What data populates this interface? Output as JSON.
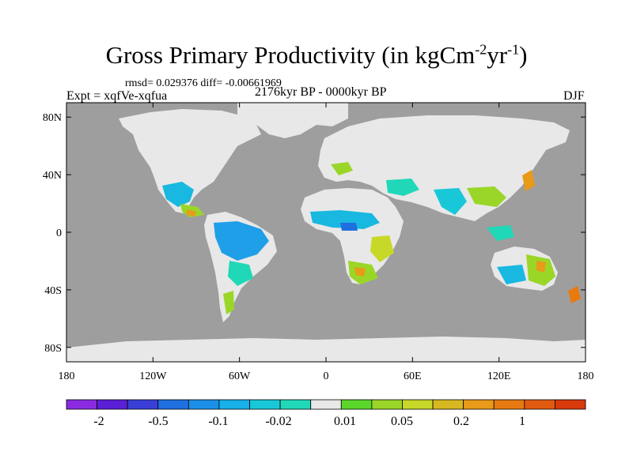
{
  "title": {
    "main": "Gross Primary Productivity (in kgCm",
    "exp1": "-2",
    "mid": "yr",
    "exp2": "-1",
    "end": ")"
  },
  "stats": "rmsd= 0.029376 diff= -0.00661969",
  "expt": "Expt = xqfVe-xqfua",
  "period": "2176kyr BP - 0000kyr BP",
  "season": "DJF",
  "map": {
    "ocean_color": "#9e9e9e",
    "lat_ticks": [
      "80N",
      "40N",
      "0",
      "40S",
      "80S"
    ],
    "lat_values": [
      80,
      40,
      0,
      -40,
      -80
    ],
    "lon_ticks": [
      "180",
      "120W",
      "60W",
      "0",
      "60E",
      "120E",
      "180"
    ],
    "lon_values": [
      -180,
      -120,
      -60,
      0,
      60,
      120,
      180
    ]
  },
  "colorbar": {
    "colors": [
      "#8a2be2",
      "#5a1fd6",
      "#3a3fd8",
      "#1f6fe0",
      "#1a90e8",
      "#17b0e8",
      "#18c8d8",
      "#20d8b8",
      "#e8e8e8",
      "#5ad62a",
      "#9ad628",
      "#c8d828",
      "#d8b820",
      "#e89a18",
      "#e87a12",
      "#e05a10",
      "#d83a0c"
    ],
    "labels": [
      "-2",
      "-0.5",
      "-0.1",
      "-0.02",
      "0.01",
      "0.05",
      "0.2",
      "1"
    ]
  }
}
